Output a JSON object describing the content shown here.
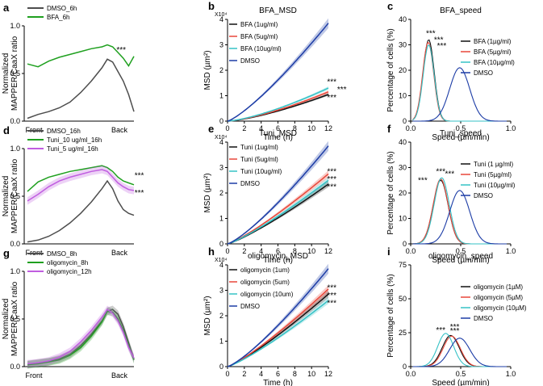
{
  "figure": {
    "colors": {
      "grey": "#4d4d4d",
      "green": "#1fa01f",
      "purple": "#c05de0",
      "black": "#111111",
      "red": "#e8473a",
      "cyan": "#35c2c6",
      "blue": "#1c3ca6"
    }
  },
  "chart_data": [
    {
      "id": "a",
      "panel_label": "a",
      "type": "line",
      "title": "",
      "ylabel": [
        "Normalized",
        "MAPPER/CaaX ratio"
      ],
      "xlabel": "",
      "ylim": [
        0,
        1
      ],
      "yticks": [
        "0.0",
        "0.5",
        "1.0"
      ],
      "xticks": [
        "Front",
        "Back"
      ],
      "x": [
        0,
        0.1,
        0.2,
        0.3,
        0.4,
        0.5,
        0.6,
        0.7,
        0.75,
        0.8,
        0.85,
        0.9,
        0.95,
        1
      ],
      "series": [
        {
          "name": "DMSO_6h",
          "color": "grey",
          "band": false,
          "values": [
            0.03,
            0.07,
            0.1,
            0.14,
            0.2,
            0.3,
            0.42,
            0.56,
            0.65,
            0.62,
            0.52,
            0.42,
            0.28,
            0.1
          ]
        },
        {
          "name": "BFA_6h",
          "color": "green",
          "band": false,
          "values": [
            0.6,
            0.57,
            0.63,
            0.67,
            0.7,
            0.73,
            0.76,
            0.78,
            0.8,
            0.78,
            0.72,
            0.66,
            0.58,
            0.68
          ]
        }
      ],
      "annotations": [
        {
          "text": "***",
          "x": 0.88,
          "y": 0.72
        }
      ]
    },
    {
      "id": "b",
      "panel_label": "b",
      "type": "line",
      "title": "BFA_MSD",
      "ylabel": [
        "MSD (µm²)"
      ],
      "xlabel": "Time (h)",
      "ymult": "X10⁴",
      "xlim": [
        0,
        12
      ],
      "ylim": [
        0,
        4
      ],
      "xticks": [
        "0",
        "2",
        "4",
        "6",
        "8",
        "10",
        "12"
      ],
      "yticks": [
        "0",
        "1",
        "2",
        "3",
        "4"
      ],
      "model": "power",
      "series": [
        {
          "name": "BFA (1ug/ml)",
          "color": "black",
          "band": true,
          "end": 1.05,
          "exp": 1.4
        },
        {
          "name": "BFA (5ug/ml)",
          "color": "red",
          "band": true,
          "end": 1.15,
          "exp": 1.4
        },
        {
          "name": "BFA (10ug/ml)",
          "color": "cyan",
          "band": true,
          "end": 1.3,
          "exp": 1.4
        },
        {
          "name": "DMSO",
          "color": "blue",
          "band": true,
          "end": 3.85,
          "exp": 1.25
        }
      ],
      "annotations": [
        {
          "text": "***",
          "x": 12.4,
          "y": 1.45
        },
        {
          "text": "***",
          "x": 13.6,
          "y": 1.15
        },
        {
          "text": "***",
          "x": 12.4,
          "y": 0.82
        }
      ]
    },
    {
      "id": "c",
      "panel_label": "c",
      "type": "line",
      "title": "BFA_speed",
      "ylabel": [
        "Percentage of cells (%)"
      ],
      "xlabel": "Speed (µm/min)",
      "xlim": [
        0,
        1
      ],
      "ylim": [
        0,
        40
      ],
      "xticks": [
        "0.0",
        "0.5",
        "1.0"
      ],
      "yticks": [
        "0",
        "10",
        "20",
        "30",
        "40"
      ],
      "model": "gauss",
      "series": [
        {
          "name": "BFA (1µg/ml)",
          "color": "black",
          "band": false,
          "mu": 0.18,
          "sigma": 0.055,
          "peak": 32
        },
        {
          "name": "BFA (5µg/ml)",
          "color": "red",
          "band": false,
          "mu": 0.175,
          "sigma": 0.055,
          "peak": 31
        },
        {
          "name": "BFA (10µg/ml)",
          "color": "cyan",
          "band": false,
          "mu": 0.18,
          "sigma": 0.055,
          "peak": 30
        },
        {
          "name": "DMSO",
          "color": "blue",
          "band": false,
          "mu": 0.49,
          "sigma": 0.1,
          "peak": 21
        }
      ],
      "annotations": [
        {
          "text": "***",
          "x": 0.2,
          "y": 33.5
        },
        {
          "text": "***",
          "x": 0.28,
          "y": 31.0
        },
        {
          "text": "***",
          "x": 0.31,
          "y": 28.5
        }
      ]
    },
    {
      "id": "d",
      "panel_label": "d",
      "type": "line",
      "title": "",
      "ylabel": [
        "Normalized",
        "MAPPER/CaaX ratio"
      ],
      "xlabel": "",
      "ylim": [
        0,
        1
      ],
      "yticks": [
        "0.0",
        "0.5",
        "1.0"
      ],
      "xticks": [
        "Front",
        "Back"
      ],
      "x": [
        0,
        0.1,
        0.2,
        0.3,
        0.4,
        0.5,
        0.6,
        0.7,
        0.75,
        0.8,
        0.85,
        0.9,
        0.95,
        1
      ],
      "series": [
        {
          "name": "DMSO_16h",
          "color": "grey",
          "band": false,
          "values": [
            0.02,
            0.04,
            0.08,
            0.14,
            0.22,
            0.32,
            0.44,
            0.58,
            0.66,
            0.58,
            0.45,
            0.36,
            0.32,
            0.3
          ]
        },
        {
          "name": "Tuni_10 ug/ml_16h",
          "color": "green",
          "band": false,
          "values": [
            0.55,
            0.65,
            0.7,
            0.73,
            0.76,
            0.78,
            0.8,
            0.82,
            0.8,
            0.76,
            0.7,
            0.66,
            0.64,
            0.62
          ]
        },
        {
          "name": "Tuni_5 ug/ml_16h",
          "color": "purple",
          "band": true,
          "values": [
            0.45,
            0.52,
            0.6,
            0.66,
            0.7,
            0.73,
            0.76,
            0.78,
            0.76,
            0.7,
            0.64,
            0.6,
            0.57,
            0.56
          ]
        }
      ],
      "annotations": [
        {
          "text": "***",
          "x": 1.05,
          "y": 0.69
        },
        {
          "text": "***",
          "x": 1.05,
          "y": 0.51
        }
      ]
    },
    {
      "id": "e",
      "panel_label": "e",
      "type": "line",
      "title": "Tuni_MSD",
      "ylabel": [
        "MSD (µm²)"
      ],
      "xlabel": "Time (h)",
      "ymult": "X10⁴",
      "xlim": [
        0,
        12
      ],
      "ylim": [
        0,
        4
      ],
      "xticks": [
        "0",
        "2",
        "4",
        "6",
        "8",
        "10",
        "12"
      ],
      "yticks": [
        "0",
        "1",
        "2",
        "3",
        "4"
      ],
      "model": "power",
      "series": [
        {
          "name": "Tuni (1ug/ml)",
          "color": "black",
          "band": true,
          "end": 2.35,
          "exp": 1.2
        },
        {
          "name": "Tuni (5ug/ml)",
          "color": "red",
          "band": true,
          "end": 2.75,
          "exp": 1.2
        },
        {
          "name": "Tuni (10ug/ml)",
          "color": "cyan",
          "band": true,
          "end": 2.5,
          "exp": 1.2
        },
        {
          "name": "DMSO",
          "color": "blue",
          "band": true,
          "end": 3.85,
          "exp": 1.25
        }
      ],
      "annotations": [
        {
          "text": "***",
          "x": 12.4,
          "y": 2.75
        },
        {
          "text": "***",
          "x": 12.4,
          "y": 2.45
        },
        {
          "text": "***",
          "x": 12.4,
          "y": 2.15
        }
      ]
    },
    {
      "id": "f",
      "panel_label": "f",
      "type": "line",
      "title": "Tuni_speed",
      "ylabel": [
        "Percentage of cells (%)"
      ],
      "xlabel": "Speed (µm/min)",
      "xlim": [
        0,
        1
      ],
      "ylim": [
        0,
        40
      ],
      "xticks": [
        "0.0",
        "0.5",
        "1.0"
      ],
      "yticks": [
        "0",
        "10",
        "20",
        "30",
        "40"
      ],
      "model": "gauss",
      "series": [
        {
          "name": "Tuni (1 µg/ml)",
          "color": "black",
          "band": false,
          "mu": 0.3,
          "sigma": 0.075,
          "peak": 25
        },
        {
          "name": "Tuni (5µg/ml)",
          "color": "red",
          "band": false,
          "mu": 0.3,
          "sigma": 0.075,
          "peak": 25.5
        },
        {
          "name": "Tuni (10µg/ml)",
          "color": "cyan",
          "band": false,
          "mu": 0.31,
          "sigma": 0.075,
          "peak": 26
        },
        {
          "name": "DMSO",
          "color": "blue",
          "band": false,
          "mu": 0.49,
          "sigma": 0.1,
          "peak": 21
        }
      ],
      "annotations": [
        {
          "text": "***",
          "x": 0.12,
          "y": 24.0
        },
        {
          "text": "***",
          "x": 0.3,
          "y": 27.5
        },
        {
          "text": "***",
          "x": 0.39,
          "y": 26.5
        }
      ]
    },
    {
      "id": "g",
      "panel_label": "g",
      "type": "line",
      "title": "",
      "ylabel": [
        "Normalized",
        "MAPPER/CaaX ratio"
      ],
      "xlabel": "",
      "ylim": [
        0,
        1
      ],
      "yticks": [
        "0.0",
        "0.5",
        "1.0"
      ],
      "xticks": [
        "Front",
        "Back"
      ],
      "x": [
        0,
        0.1,
        0.2,
        0.3,
        0.4,
        0.5,
        0.6,
        0.7,
        0.75,
        0.8,
        0.85,
        0.9,
        0.95,
        1
      ],
      "series": [
        {
          "name": "DMSO_8h",
          "color": "grey",
          "band": true,
          "values": [
            0.02,
            0.04,
            0.05,
            0.08,
            0.13,
            0.22,
            0.34,
            0.48,
            0.58,
            0.6,
            0.55,
            0.42,
            0.25,
            0.08
          ]
        },
        {
          "name": "oligomycin_8h",
          "color": "green",
          "band": true,
          "values": [
            0.02,
            0.03,
            0.05,
            0.07,
            0.12,
            0.2,
            0.32,
            0.47,
            0.58,
            0.57,
            0.5,
            0.38,
            0.22,
            0.07
          ]
        },
        {
          "name": "oligomycin_12h",
          "color": "purple",
          "band": true,
          "values": [
            0.03,
            0.04,
            0.06,
            0.1,
            0.16,
            0.26,
            0.38,
            0.52,
            0.6,
            0.56,
            0.48,
            0.36,
            0.2,
            0.09
          ]
        }
      ],
      "annotations": []
    },
    {
      "id": "h",
      "panel_label": "h",
      "type": "line",
      "title": "oligomycin_MSD",
      "ylabel": [
        "MSD (µm²)"
      ],
      "xlabel": "Time (h)",
      "ymult": "X10⁴",
      "xlim": [
        0,
        12
      ],
      "ylim": [
        0,
        4
      ],
      "xticks": [
        "0",
        "2",
        "4",
        "6",
        "8",
        "10",
        "12"
      ],
      "yticks": [
        "0",
        "1",
        "2",
        "3",
        "4"
      ],
      "model": "power",
      "series": [
        {
          "name": "oligomycin (1um)",
          "color": "black",
          "band": true,
          "end": 2.85,
          "exp": 1.2
        },
        {
          "name": "oligomycin (5um)",
          "color": "red",
          "band": true,
          "end": 3.05,
          "exp": 1.2
        },
        {
          "name": "oligomycin (10um)",
          "color": "cyan",
          "band": true,
          "end": 2.6,
          "exp": 1.2
        },
        {
          "name": "DMSO",
          "color": "blue",
          "band": true,
          "end": 3.85,
          "exp": 1.25
        }
      ],
      "annotations": [
        {
          "text": "***",
          "x": 12.4,
          "y": 3.0
        },
        {
          "text": "***",
          "x": 12.4,
          "y": 2.7
        },
        {
          "text": "***",
          "x": 12.4,
          "y": 2.4
        }
      ]
    },
    {
      "id": "i",
      "panel_label": "i",
      "type": "line",
      "title": "oligomycin_speed",
      "ylabel": [
        "Percentage of cells (%)"
      ],
      "xlabel": "Speed (µm/min)",
      "xlim": [
        0,
        1
      ],
      "ylim": [
        0,
        75
      ],
      "xticks": [
        "0.0",
        "0.5",
        "1.0"
      ],
      "yticks": [
        "0",
        "25",
        "50",
        "75"
      ],
      "model": "gauss",
      "series": [
        {
          "name": "oligomycin (1µM)",
          "color": "black",
          "band": false,
          "mu": 0.4,
          "sigma": 0.085,
          "peak": 23
        },
        {
          "name": "oligomycin (5µM)",
          "color": "red",
          "band": false,
          "mu": 0.41,
          "sigma": 0.085,
          "peak": 22.5
        },
        {
          "name": "oligomycin (10µM)",
          "color": "cyan",
          "band": false,
          "mu": 0.35,
          "sigma": 0.08,
          "peak": 24.5
        },
        {
          "name": "DMSO",
          "color": "blue",
          "band": false,
          "mu": 0.49,
          "sigma": 0.1,
          "peak": 21
        }
      ],
      "annotations": [
        {
          "text": "***",
          "x": 0.3,
          "y": 25.0
        },
        {
          "text": "***",
          "x": 0.44,
          "y": 27.5
        },
        {
          "text": "***",
          "x": 0.44,
          "y": 24.5
        }
      ]
    }
  ]
}
